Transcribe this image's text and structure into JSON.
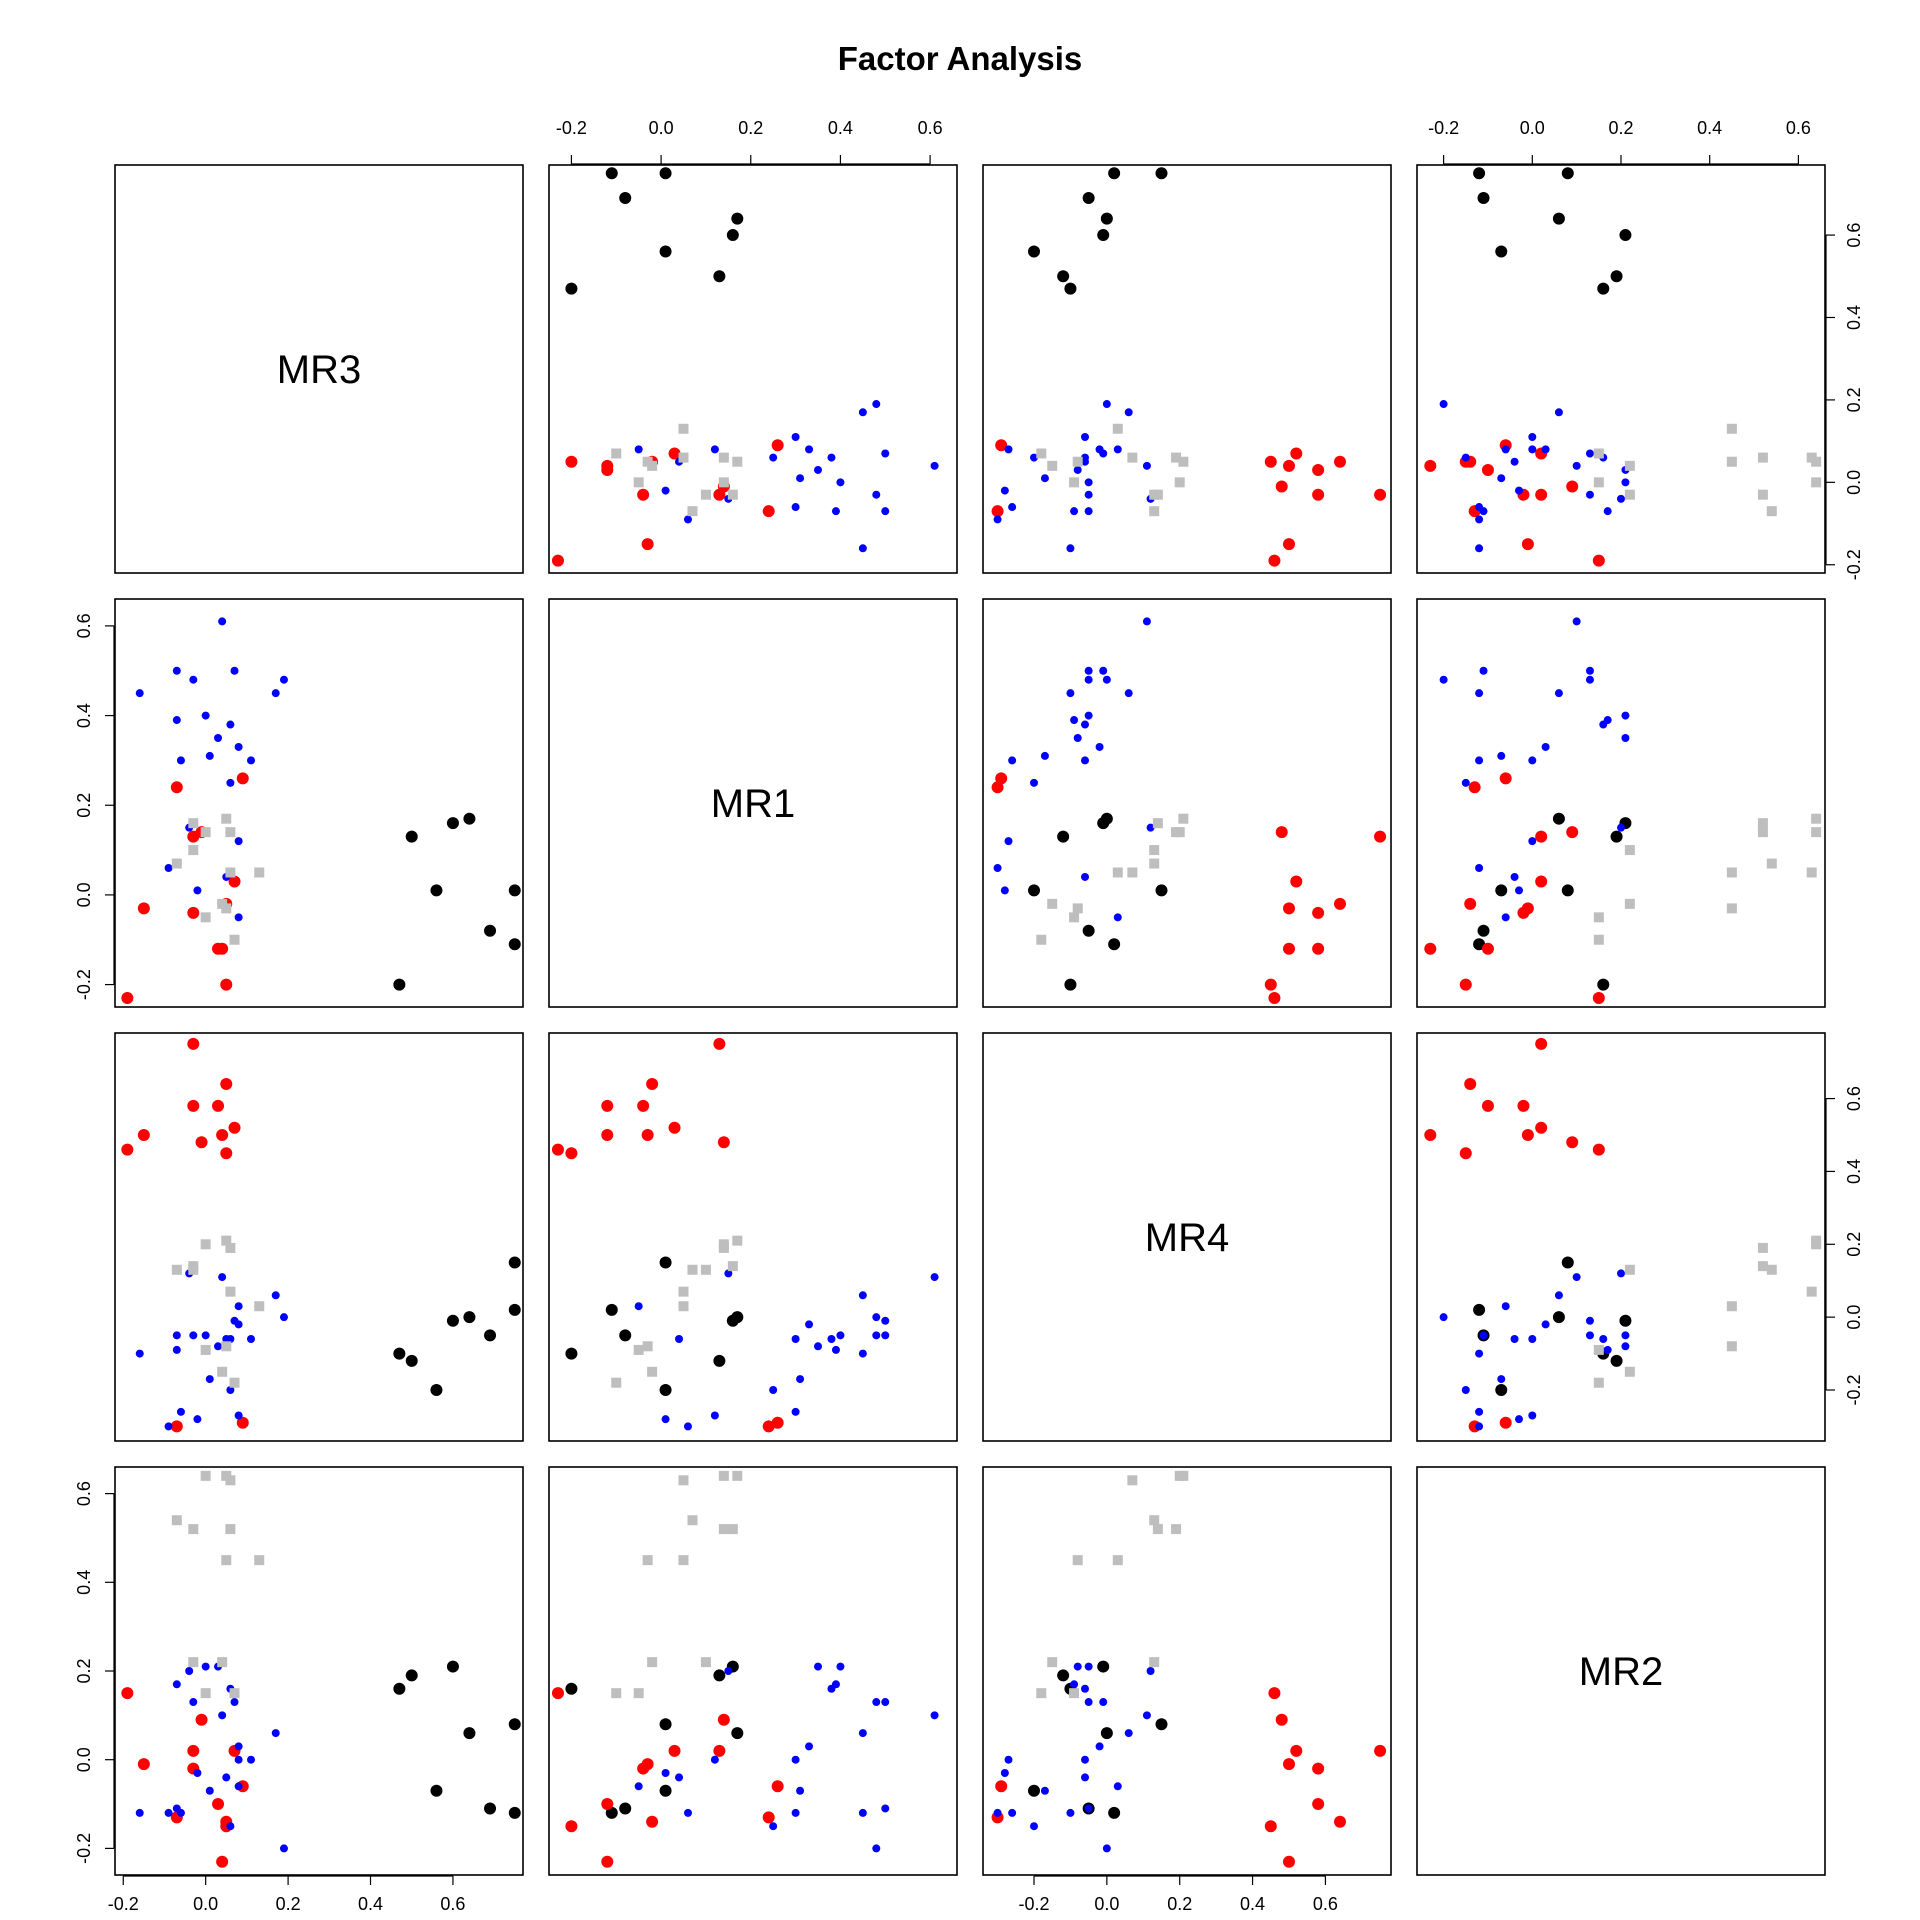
{
  "chart_data": {
    "type": "scatter",
    "title": "Factor Analysis",
    "variables": [
      "MR3",
      "MR1",
      "MR4",
      "MR2"
    ],
    "lims": {
      "MR3": [
        -0.22,
        0.77
      ],
      "MR1": [
        -0.25,
        0.66
      ],
      "MR4": [
        -0.34,
        0.78
      ],
      "MR2": [
        -0.26,
        0.66
      ]
    },
    "ticks": {
      "MR3": [
        "-0.2",
        "0.0",
        "0.2",
        "0.4",
        "0.6"
      ],
      "MR1": [
        "-0.2",
        "0.0",
        "0.2",
        "0.4",
        "0.6"
      ],
      "MR4": [
        "-0.2",
        "0.0",
        "0.2",
        "0.4",
        "0.6"
      ],
      "MR2": [
        "-0.2",
        "0.0",
        "0.2",
        "0.4",
        "0.6"
      ]
    },
    "groups": [
      {
        "color": "#000000",
        "marker": "circle-large",
        "points": [
          [
            0.75,
            0.01,
            0.15,
            0.08
          ],
          [
            0.69,
            -0.08,
            -0.05,
            -0.11
          ],
          [
            0.75,
            -0.11,
            0.02,
            -0.12
          ],
          [
            0.64,
            0.17,
            0.0,
            0.06
          ],
          [
            0.6,
            0.16,
            -0.01,
            0.21
          ],
          [
            0.56,
            0.01,
            -0.2,
            -0.07
          ],
          [
            0.5,
            0.13,
            -0.12,
            0.19
          ],
          [
            0.47,
            -0.2,
            -0.1,
            0.16
          ]
        ]
      },
      {
        "color": "#ff0000",
        "marker": "circle-large",
        "points": [
          [
            0.05,
            -0.2,
            0.45,
            -0.15
          ],
          [
            0.03,
            -0.12,
            0.58,
            -0.1
          ],
          [
            -0.03,
            -0.04,
            0.58,
            -0.02
          ],
          [
            0.07,
            0.03,
            0.52,
            0.02
          ],
          [
            0.05,
            -0.02,
            0.64,
            -0.14
          ],
          [
            0.09,
            0.26,
            -0.29,
            -0.06
          ],
          [
            -0.19,
            -0.23,
            0.46,
            0.15
          ],
          [
            -0.03,
            0.13,
            0.75,
            0.02
          ],
          [
            -0.07,
            0.24,
            -0.3,
            -0.13
          ],
          [
            -0.15,
            -0.03,
            0.5,
            -0.01
          ],
          [
            0.04,
            -0.12,
            0.5,
            -0.23
          ],
          [
            -0.01,
            0.14,
            0.48,
            0.09
          ]
        ]
      },
      {
        "color": "#0000ff",
        "marker": "circle-small",
        "points": [
          [
            0.19,
            0.48,
            0.0,
            -0.2
          ],
          [
            0.17,
            0.45,
            0.06,
            0.06
          ],
          [
            0.04,
            0.61,
            0.11,
            0.1
          ],
          [
            0.07,
            0.5,
            -0.01,
            0.13
          ],
          [
            -0.03,
            0.48,
            -0.05,
            0.13
          ],
          [
            0.0,
            0.4,
            -0.05,
            0.21
          ],
          [
            0.06,
            0.38,
            -0.06,
            0.16
          ],
          [
            -0.07,
            0.39,
            -0.09,
            0.17
          ],
          [
            0.03,
            0.35,
            -0.08,
            0.21
          ],
          [
            -0.07,
            0.5,
            -0.05,
            -0.11
          ],
          [
            0.08,
            0.33,
            -0.02,
            0.03
          ],
          [
            0.11,
            0.3,
            -0.06,
            0.0
          ],
          [
            0.01,
            0.31,
            -0.17,
            -0.07
          ],
          [
            -0.06,
            0.3,
            -0.26,
            -0.12
          ],
          [
            0.06,
            0.25,
            -0.2,
            -0.15
          ],
          [
            -0.16,
            0.45,
            -0.1,
            -0.12
          ],
          [
            -0.04,
            0.15,
            0.12,
            0.2
          ],
          [
            0.08,
            0.12,
            -0.27,
            0.0
          ],
          [
            -0.09,
            0.06,
            -0.3,
            -0.12
          ],
          [
            -0.02,
            0.01,
            -0.28,
            -0.03
          ],
          [
            0.05,
            0.04,
            -0.06,
            -0.04
          ],
          [
            0.08,
            -0.05,
            0.03,
            -0.06
          ]
        ]
      },
      {
        "color": "#bebebe",
        "marker": "square",
        "points": [
          [
            0.05,
            0.17,
            0.21,
            0.64
          ],
          [
            0.0,
            0.14,
            0.2,
            0.64
          ],
          [
            -0.03,
            0.16,
            0.14,
            0.52
          ],
          [
            0.06,
            0.14,
            0.19,
            0.52
          ],
          [
            -0.07,
            0.07,
            0.13,
            0.54
          ],
          [
            0.06,
            0.05,
            0.07,
            0.63
          ],
          [
            0.13,
            0.05,
            0.03,
            0.45
          ],
          [
            0.05,
            -0.03,
            -0.08,
            0.45
          ],
          [
            -0.03,
            0.1,
            0.13,
            0.22
          ],
          [
            0.0,
            -0.05,
            -0.09,
            0.15
          ],
          [
            0.04,
            -0.02,
            -0.15,
            0.22
          ],
          [
            0.07,
            -0.1,
            -0.18,
            0.15
          ]
        ]
      }
    ]
  }
}
